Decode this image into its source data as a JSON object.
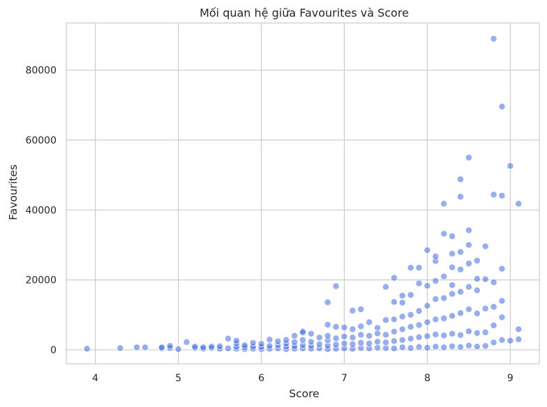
{
  "chart_data": {
    "type": "scatter",
    "title": "Mối quan hệ giữa Favourites và Score",
    "xlabel": "Score",
    "ylabel": "Favourites",
    "xlim": [
      3.65,
      9.35
    ],
    "ylim": [
      -4000,
      93500
    ],
    "xticks": [
      4,
      5,
      6,
      7,
      8,
      9
    ],
    "yticks": [
      0,
      20000,
      40000,
      60000,
      80000
    ],
    "xtick_labels": [
      "4",
      "5",
      "6",
      "7",
      "8",
      "9"
    ],
    "ytick_labels": [
      "0",
      "20000",
      "40000",
      "60000",
      "80000"
    ],
    "grid": true,
    "legend": "none",
    "marker_color": "#4169e1",
    "points": [
      [
        3.9,
        300
      ],
      [
        4.3,
        500
      ],
      [
        4.5,
        700
      ],
      [
        4.6,
        700
      ],
      [
        4.8,
        400
      ],
      [
        4.8,
        700
      ],
      [
        4.9,
        500
      ],
      [
        4.9,
        1100
      ],
      [
        5.0,
        200
      ],
      [
        5.1,
        2200
      ],
      [
        5.2,
        500
      ],
      [
        5.2,
        900
      ],
      [
        5.3,
        300
      ],
      [
        5.3,
        700
      ],
      [
        5.4,
        500
      ],
      [
        5.4,
        900
      ],
      [
        5.5,
        300
      ],
      [
        5.5,
        1000
      ],
      [
        5.6,
        400
      ],
      [
        5.6,
        3200
      ],
      [
        5.7,
        300
      ],
      [
        5.7,
        900
      ],
      [
        5.7,
        1800
      ],
      [
        5.7,
        2600
      ],
      [
        5.8,
        200
      ],
      [
        5.8,
        700
      ],
      [
        5.8,
        1300
      ],
      [
        5.9,
        300
      ],
      [
        5.9,
        900
      ],
      [
        5.9,
        2000
      ],
      [
        6.0,
        200
      ],
      [
        6.0,
        800
      ],
      [
        6.0,
        1700
      ],
      [
        6.1,
        300
      ],
      [
        6.1,
        1100
      ],
      [
        6.1,
        2900
      ],
      [
        6.2,
        400
      ],
      [
        6.2,
        1300
      ],
      [
        6.2,
        2400
      ],
      [
        6.3,
        200
      ],
      [
        6.3,
        900
      ],
      [
        6.3,
        1800
      ],
      [
        6.3,
        2800
      ],
      [
        6.4,
        300
      ],
      [
        6.4,
        1000
      ],
      [
        6.4,
        2200
      ],
      [
        6.4,
        4000
      ],
      [
        6.5,
        400
      ],
      [
        6.5,
        1300
      ],
      [
        6.5,
        2800
      ],
      [
        6.5,
        5300
      ],
      [
        6.5,
        5000
      ],
      [
        6.6,
        300
      ],
      [
        6.6,
        1100
      ],
      [
        6.6,
        2300
      ],
      [
        6.6,
        4600
      ],
      [
        6.7,
        400
      ],
      [
        6.7,
        1600
      ],
      [
        6.7,
        3500
      ],
      [
        6.8,
        200
      ],
      [
        6.8,
        1200
      ],
      [
        6.8,
        2700
      ],
      [
        6.8,
        4000
      ],
      [
        6.8,
        7200
      ],
      [
        6.8,
        13600
      ],
      [
        6.9,
        300
      ],
      [
        6.9,
        1500
      ],
      [
        6.9,
        3300
      ],
      [
        6.9,
        6600
      ],
      [
        6.9,
        18200
      ],
      [
        7.0,
        400
      ],
      [
        7.0,
        1800
      ],
      [
        7.0,
        3800
      ],
      [
        7.0,
        6400
      ],
      [
        7.1,
        300
      ],
      [
        7.1,
        1600
      ],
      [
        7.1,
        3500
      ],
      [
        7.1,
        5900
      ],
      [
        7.1,
        11200
      ],
      [
        7.2,
        500
      ],
      [
        7.2,
        2000
      ],
      [
        7.2,
        4300
      ],
      [
        7.2,
        6700
      ],
      [
        7.2,
        11600
      ],
      [
        7.3,
        400
      ],
      [
        7.3,
        1800
      ],
      [
        7.3,
        4000
      ],
      [
        7.3,
        7900
      ],
      [
        7.4,
        600
      ],
      [
        7.4,
        2300
      ],
      [
        7.4,
        4700
      ],
      [
        7.4,
        6300
      ],
      [
        7.5,
        500
      ],
      [
        7.5,
        2100
      ],
      [
        7.5,
        4300
      ],
      [
        7.5,
        8500
      ],
      [
        7.5,
        18000
      ],
      [
        7.6,
        400
      ],
      [
        7.6,
        2500
      ],
      [
        7.6,
        5200
      ],
      [
        7.6,
        8700
      ],
      [
        7.6,
        13700
      ],
      [
        7.6,
        20600
      ],
      [
        7.7,
        700
      ],
      [
        7.7,
        2800
      ],
      [
        7.7,
        5900
      ],
      [
        7.7,
        9500
      ],
      [
        7.7,
        13500
      ],
      [
        7.7,
        15500
      ],
      [
        7.8,
        500
      ],
      [
        7.8,
        3200
      ],
      [
        7.8,
        6600
      ],
      [
        7.8,
        10000
      ],
      [
        7.8,
        15700
      ],
      [
        7.8,
        23500
      ],
      [
        7.9,
        800
      ],
      [
        7.9,
        3600
      ],
      [
        7.9,
        7100
      ],
      [
        7.9,
        11100
      ],
      [
        7.9,
        19000
      ],
      [
        7.9,
        23500
      ],
      [
        8.0,
        600
      ],
      [
        8.0,
        3900
      ],
      [
        8.0,
        7900
      ],
      [
        8.0,
        12600
      ],
      [
        8.0,
        18300
      ],
      [
        8.0,
        28500
      ],
      [
        8.1,
        900
      ],
      [
        8.1,
        4400
      ],
      [
        8.1,
        8700
      ],
      [
        8.1,
        14500
      ],
      [
        8.1,
        19700
      ],
      [
        8.1,
        25400
      ],
      [
        8.1,
        26700
      ],
      [
        8.2,
        700
      ],
      [
        8.2,
        4100
      ],
      [
        8.2,
        9000
      ],
      [
        8.2,
        14800
      ],
      [
        8.2,
        21000
      ],
      [
        8.2,
        33200
      ],
      [
        8.2,
        41800
      ],
      [
        8.3,
        1000
      ],
      [
        8.3,
        4600
      ],
      [
        8.3,
        9700
      ],
      [
        8.3,
        16000
      ],
      [
        8.3,
        18500
      ],
      [
        8.3,
        23600
      ],
      [
        8.3,
        27500
      ],
      [
        8.3,
        32500
      ],
      [
        8.4,
        800
      ],
      [
        8.4,
        4200
      ],
      [
        8.4,
        10500
      ],
      [
        8.4,
        16600
      ],
      [
        8.4,
        23000
      ],
      [
        8.4,
        28000
      ],
      [
        8.4,
        43800
      ],
      [
        8.4,
        48800
      ],
      [
        8.5,
        1200
      ],
      [
        8.5,
        5300
      ],
      [
        8.5,
        11600
      ],
      [
        8.5,
        18000
      ],
      [
        8.5,
        24700
      ],
      [
        8.5,
        30000
      ],
      [
        8.5,
        34200
      ],
      [
        8.5,
        55000
      ],
      [
        8.6,
        900
      ],
      [
        8.6,
        4800
      ],
      [
        8.6,
        10400
      ],
      [
        8.6,
        17000
      ],
      [
        8.6,
        20300
      ],
      [
        8.6,
        25500
      ],
      [
        8.7,
        1100
      ],
      [
        8.7,
        5000
      ],
      [
        8.7,
        11800
      ],
      [
        8.7,
        20200
      ],
      [
        8.7,
        29600
      ],
      [
        8.8,
        2100
      ],
      [
        8.8,
        7000
      ],
      [
        8.8,
        12300
      ],
      [
        8.8,
        19300
      ],
      [
        8.8,
        44400
      ],
      [
        8.8,
        89000
      ],
      [
        8.9,
        2800
      ],
      [
        8.9,
        9300
      ],
      [
        8.9,
        14000
      ],
      [
        8.9,
        23200
      ],
      [
        8.9,
        44100
      ],
      [
        8.9,
        69600
      ],
      [
        9.0,
        2600
      ],
      [
        9.0,
        52600
      ],
      [
        9.1,
        3000
      ],
      [
        9.1,
        5900
      ],
      [
        9.1,
        41800
      ]
    ]
  }
}
